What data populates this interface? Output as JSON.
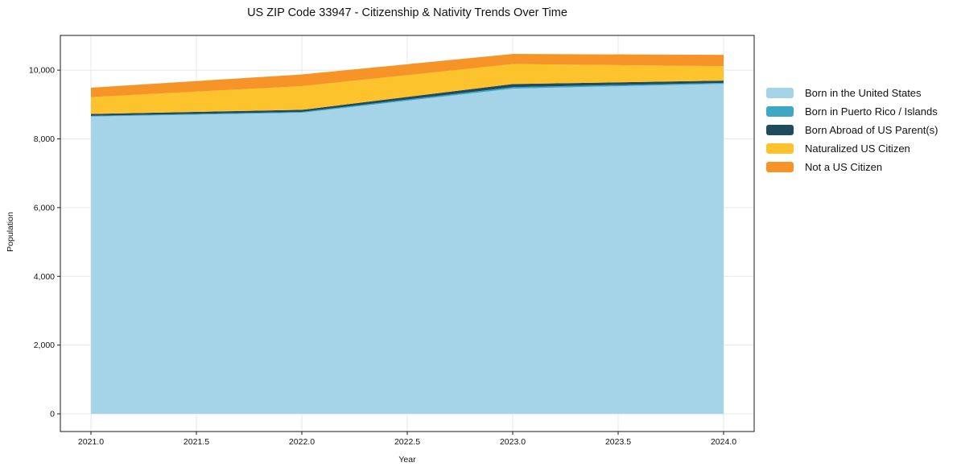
{
  "chart_data": {
    "type": "area",
    "stacked": true,
    "title": "US ZIP Code 33947 - Citizenship & Nativity Trends Over Time",
    "xlabel": "Year",
    "ylabel": "Population",
    "x": [
      2021,
      2022,
      2023,
      2024
    ],
    "series": [
      {
        "name": "Born in the United States",
        "color": "#a5d3e8",
        "values": [
          8650,
          8760,
          9460,
          9600
        ]
      },
      {
        "name": "Born in Puerto Rico / Islands",
        "color": "#3fa7c6",
        "values": [
          20,
          25,
          45,
          30
        ]
      },
      {
        "name": "Born Abroad of US Parent(s)",
        "color": "#1f4b5f",
        "values": [
          55,
          60,
          90,
          65
        ]
      },
      {
        "name": "Naturalized US Citizen",
        "color": "#fdc32c",
        "values": [
          490,
          690,
          580,
          420
        ]
      },
      {
        "name": "Not a US Citizen",
        "color": "#f79428",
        "values": [
          275,
          340,
          295,
          330
        ]
      }
    ],
    "totals": [
      9490,
      9875,
      10470,
      10445
    ],
    "xticks": [
      2021.0,
      2021.5,
      2022.0,
      2022.5,
      2023.0,
      2023.5,
      2024.0
    ],
    "xtick_labels": [
      "2021.0",
      "2021.5",
      "2022.0",
      "2022.5",
      "2023.0",
      "2023.5",
      "2024.0"
    ],
    "yticks": [
      0,
      2000,
      4000,
      6000,
      8000,
      10000
    ],
    "ytick_labels": [
      "0",
      "2,000",
      "4,000",
      "6,000",
      "8,000",
      "10,000"
    ],
    "xlim": [
      2020.855,
      2024.145
    ],
    "ylim": [
      -515,
      11010
    ],
    "grid": true,
    "legend_position": "right-outside",
    "colors": {
      "grid": "#e7e7e7",
      "axis": "#1a1a1a",
      "tick_label": "#111111",
      "background": "#ffffff"
    }
  }
}
